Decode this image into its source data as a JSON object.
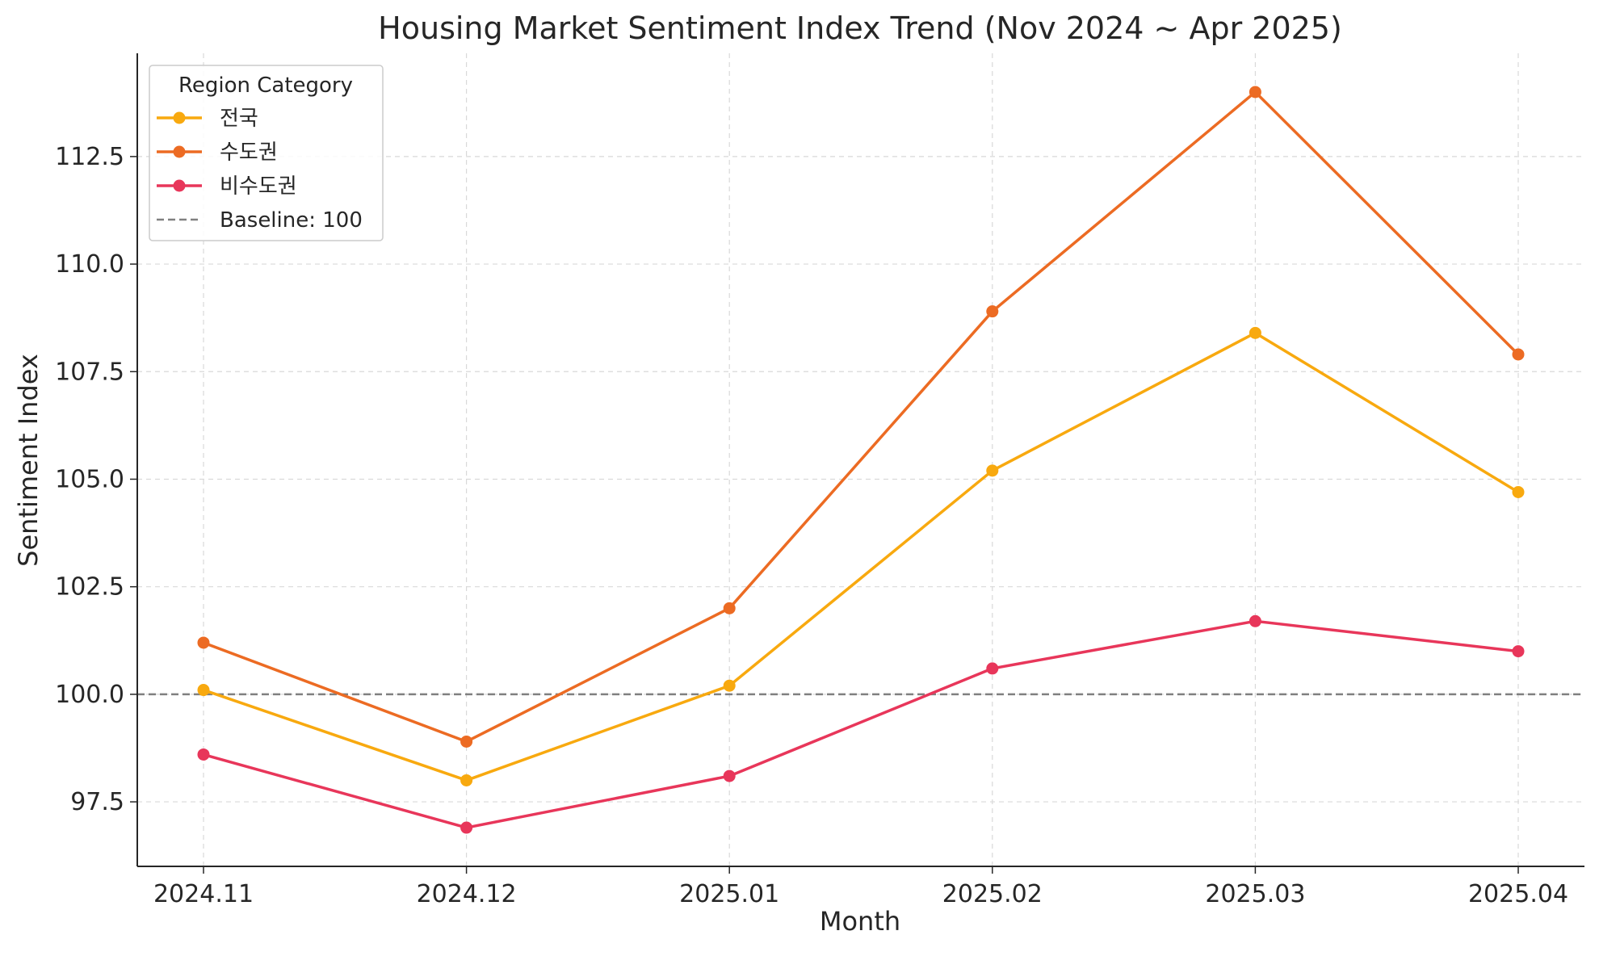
{
  "chart_data": {
    "type": "line",
    "title": "Housing Market Sentiment Index Trend (Nov 2024 ~ Apr 2025)",
    "xlabel": "Month",
    "ylabel": "Sentiment Index",
    "categories": [
      "2024.11",
      "2024.12",
      "2025.01",
      "2025.02",
      "2025.03",
      "2025.04"
    ],
    "y_ticks": [
      "97.5",
      "100.0",
      "102.5",
      "105.0",
      "107.5",
      "110.0",
      "112.5"
    ],
    "ylim": [
      96.0,
      114.9
    ],
    "grid": true,
    "legend": {
      "title": "Region Category",
      "placement": "top-left"
    },
    "series": [
      {
        "name": "전국",
        "color": "#F8A90F",
        "values": [
          100.1,
          98.0,
          100.2,
          105.2,
          108.4,
          104.7
        ]
      },
      {
        "name": "수도권",
        "color": "#EC6B23",
        "values": [
          101.2,
          98.9,
          102.0,
          108.9,
          114.0,
          107.9
        ]
      },
      {
        "name": "비수도권",
        "color": "#E8365A",
        "values": [
          98.6,
          96.9,
          98.1,
          100.6,
          101.7,
          101.0
        ]
      }
    ],
    "baseline": {
      "label": "Baseline: 100",
      "value": 100,
      "color": "#808080"
    }
  }
}
